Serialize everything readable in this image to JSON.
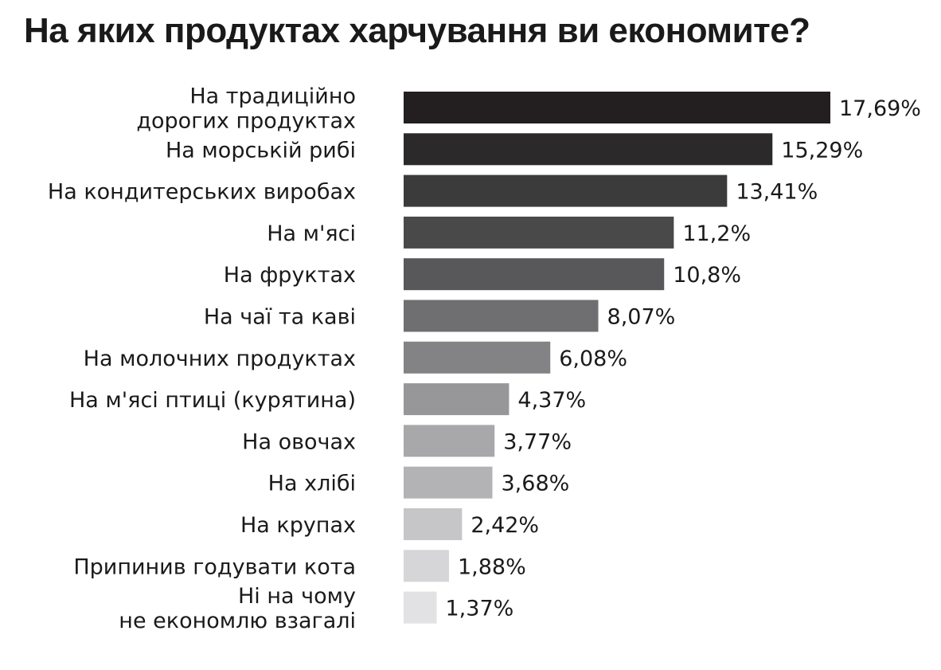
{
  "chart_data": {
    "type": "bar",
    "orientation": "horizontal",
    "title": "На яких продуктах харчування ви економите?",
    "categories": [
      [
        "На традиційно",
        "дорогих продуктах"
      ],
      [
        "На морській рибі"
      ],
      [
        "На кондитерських виробах"
      ],
      [
        "На м'ясі"
      ],
      [
        "На фруктах"
      ],
      [
        "На чаї та каві"
      ],
      [
        "На молочних продуктах"
      ],
      [
        "На м'ясі птиці (курятина)"
      ],
      [
        "На овочах"
      ],
      [
        "На хлібі"
      ],
      [
        "На крупах"
      ],
      [
        "Припинив годувати кота"
      ],
      [
        "Ні на чому",
        "не економлю взагалі"
      ]
    ],
    "values": [
      17.69,
      15.29,
      13.41,
      11.2,
      10.8,
      8.07,
      6.08,
      4.37,
      3.77,
      3.68,
      2.42,
      1.88,
      1.37
    ],
    "value_labels": [
      "17,69%",
      "15,29%",
      "13,41%",
      "11,2%",
      "10,8%",
      "8,07%",
      "6,08%",
      "4,37%",
      "3,77%",
      "3,68%",
      "2,42%",
      "1,88%",
      "1,37%"
    ],
    "bar_colors": [
      "#231f20",
      "#2b292a",
      "#3c3b3c",
      "#4a494a",
      "#585759",
      "#6f6e70",
      "#838284",
      "#979698",
      "#a8a7a9",
      "#b3b2b4",
      "#c6c5c7",
      "#d6d5d7",
      "#e2e1e3"
    ],
    "xlabel": "",
    "ylabel": "",
    "xlim": [
      0,
      20
    ],
    "grid": false,
    "legend": "none"
  }
}
